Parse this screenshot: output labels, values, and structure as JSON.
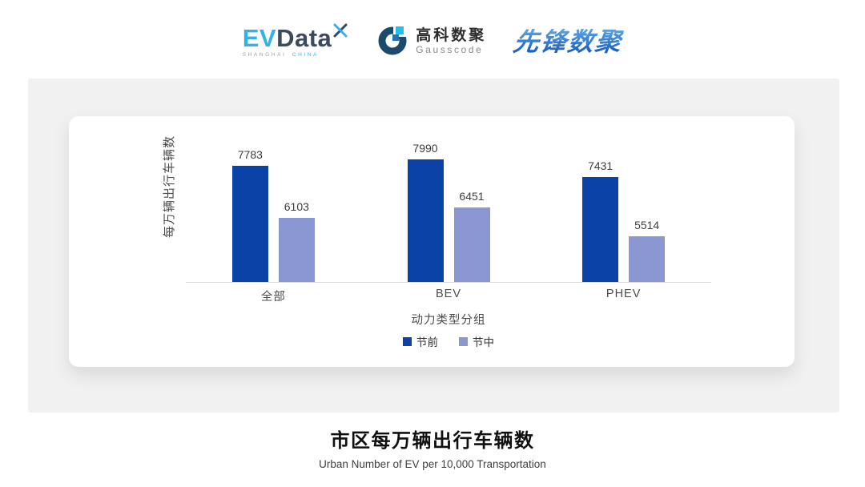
{
  "header": {
    "evdata": {
      "ev": "EV",
      "data": "Data",
      "sub_left": "SHANGHAI",
      "sub_right": "CHINA"
    },
    "gausscode": {
      "name_cn": "高科数聚",
      "name_en": "Gausscode"
    },
    "pioneer": {
      "name": "先锋数聚"
    },
    "icons": {
      "evdata_spark_icon": "x-sparkle",
      "gausscode_ring_icon": "g-ring"
    }
  },
  "chart_data": {
    "type": "bar",
    "title": "市区每万辆出行车辆数",
    "subtitle": "Urban Number of EV per 10,000 Transportation",
    "categories": [
      "全部",
      "BEV",
      "PHEV"
    ],
    "series": [
      {
        "name": "节前",
        "color": "#0B42A8",
        "values": [
          7783,
          7990,
          7431
        ]
      },
      {
        "name": "节中",
        "color": "#8B97D2",
        "values": [
          6103,
          6451,
          5514
        ]
      }
    ],
    "xlabel": "动力类型分组",
    "ylabel": "每万辆出行车辆数",
    "ylim": [
      4030,
      8000
    ],
    "grid": false,
    "legend_position": "bottom",
    "value_labels": true,
    "axis_color": "#DCDCDC"
  }
}
